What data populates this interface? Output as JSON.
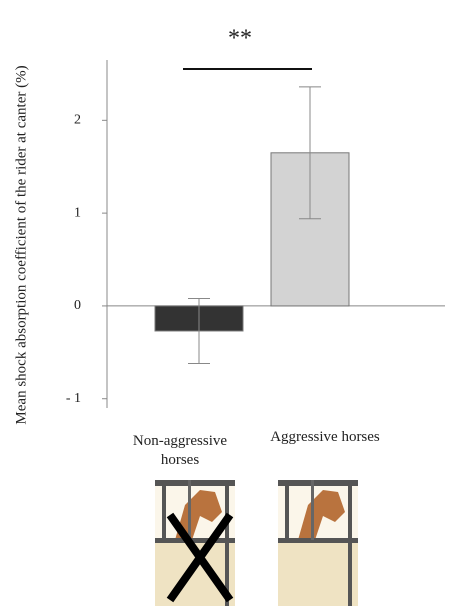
{
  "chart_data": {
    "type": "bar",
    "y_label": "Mean shock absorption coefficient of the rider at canter (%)",
    "categories": [
      "Non-aggressive horses",
      "Aggressive horses"
    ],
    "values": [
      -0.27,
      1.65
    ],
    "errors": [
      0.35,
      0.71
    ],
    "colors": [
      "#333333",
      "#d3d3d3"
    ],
    "ylim": [
      -1.1,
      2.65
    ],
    "yticks": [
      {
        "value": -1,
        "label": "- 1"
      },
      0,
      1,
      2
    ],
    "annotation": "**"
  }
}
